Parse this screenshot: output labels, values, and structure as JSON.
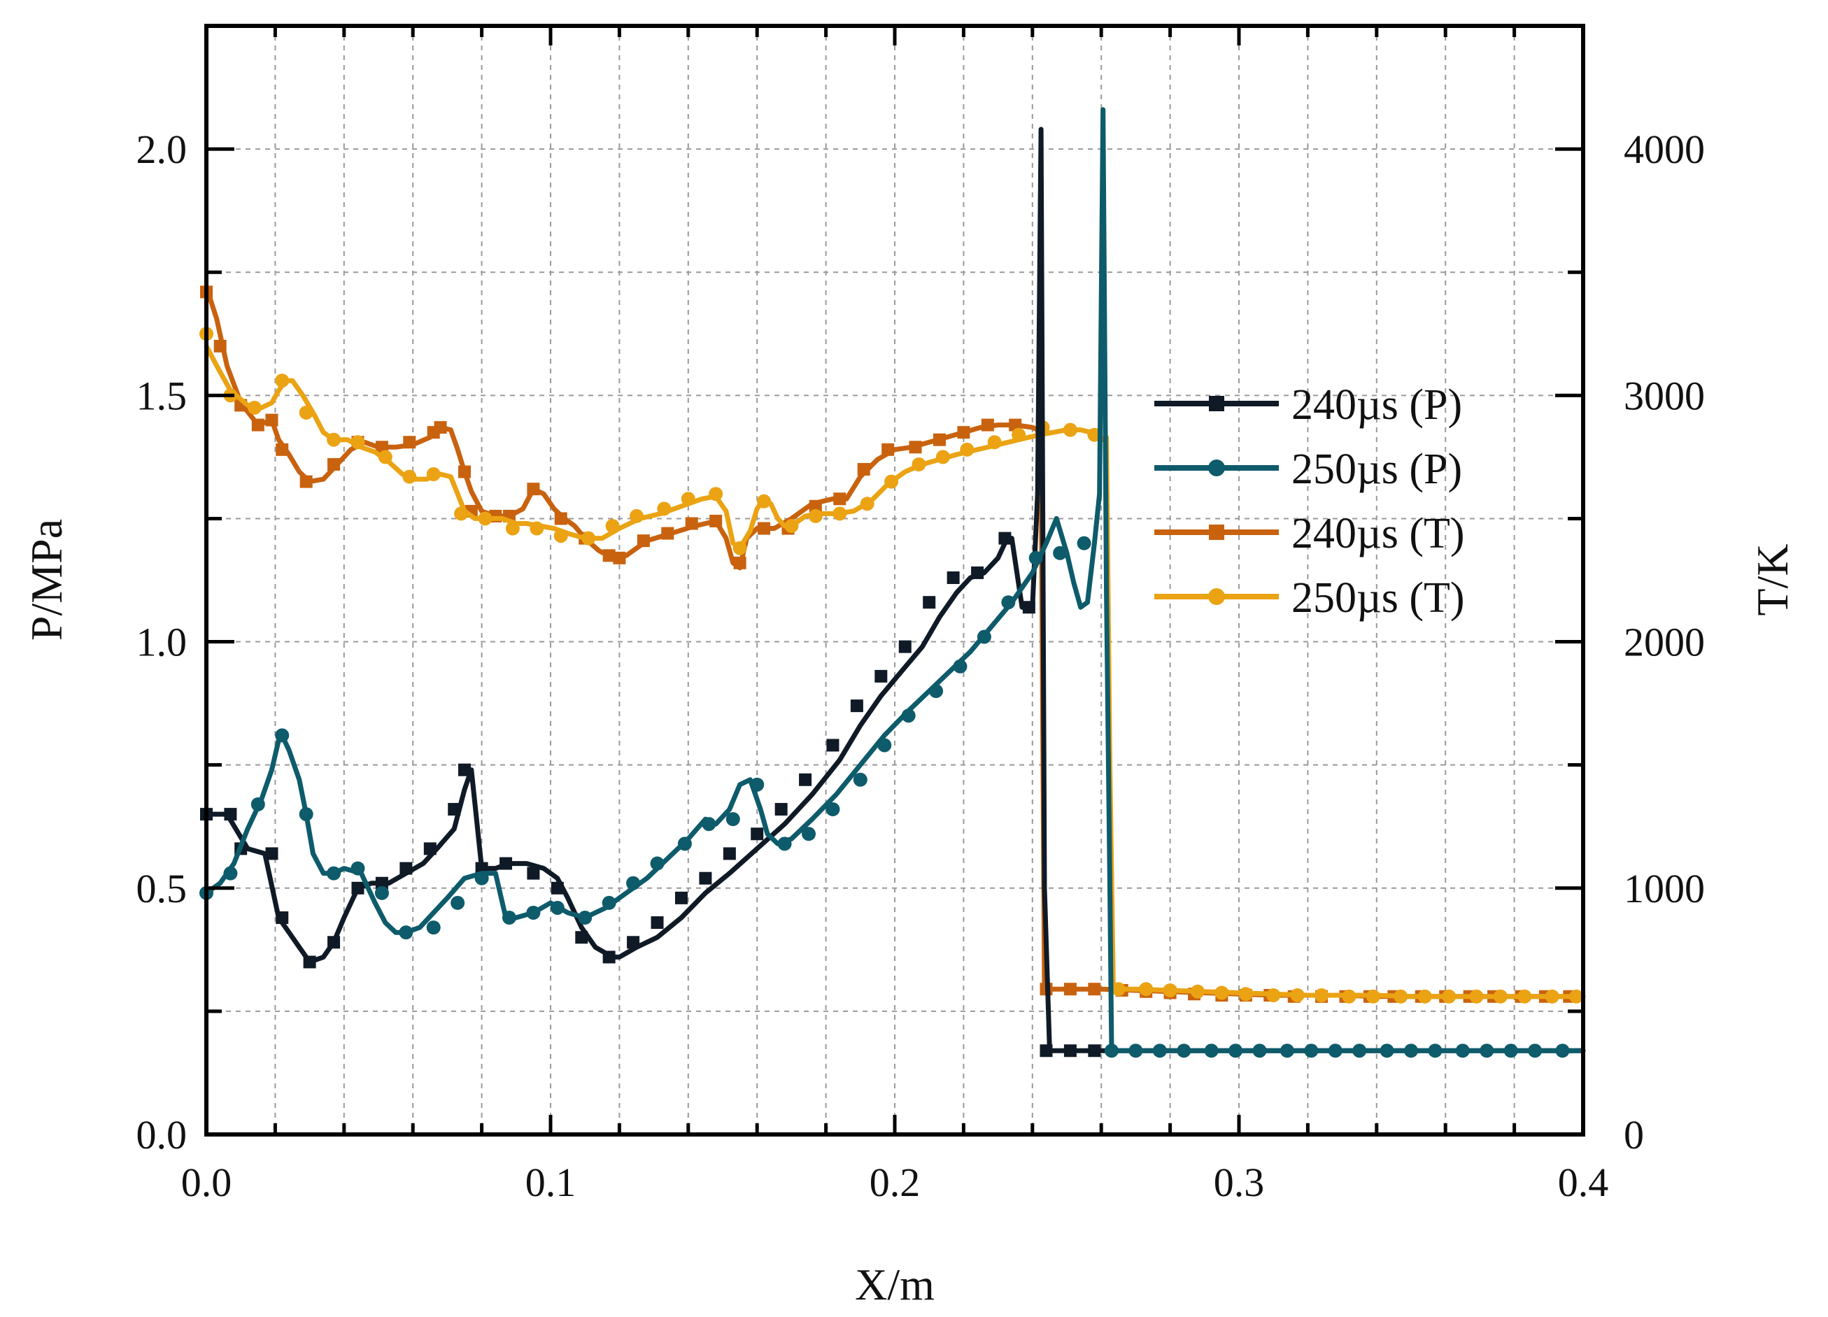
{
  "chart_data": {
    "type": "line",
    "title": "",
    "xlabel": "X/m",
    "ylabel_left": "P/MPa",
    "ylabel_right": "T/K",
    "xlim": [
      0,
      0.4
    ],
    "ylim_left": [
      0,
      2.25
    ],
    "ylim_right": [
      0,
      4500
    ],
    "grid": true,
    "legend_position": "right",
    "x_ticks": [
      0.0,
      0.1,
      0.2,
      0.3,
      0.4
    ],
    "x_tick_labels": [
      "0.0",
      "0.1",
      "0.2",
      "0.3",
      "0.4"
    ],
    "y_left_ticks": [
      0.0,
      0.5,
      1.0,
      1.5,
      2.0
    ],
    "y_left_tick_labels": [
      "0.0",
      "0.5",
      "1.0",
      "1.5",
      "2.0"
    ],
    "y_right_ticks": [
      0,
      1000,
      2000,
      3000,
      4000
    ],
    "y_right_tick_labels": [
      "0",
      "1000",
      "2000",
      "3000",
      "4000"
    ],
    "series": [
      {
        "name": "240µs (P)",
        "axis": "left",
        "color": "#0f1a26",
        "marker": "square",
        "x": [
          0.0,
          0.006,
          0.012,
          0.017,
          0.021,
          0.023,
          0.027,
          0.03,
          0.034,
          0.037,
          0.04,
          0.044,
          0.048,
          0.053,
          0.058,
          0.063,
          0.067,
          0.072,
          0.075,
          0.077,
          0.08,
          0.084,
          0.088,
          0.093,
          0.098,
          0.102,
          0.105,
          0.109,
          0.113,
          0.118,
          0.12,
          0.125,
          0.131,
          0.138,
          0.145,
          0.152,
          0.16,
          0.168,
          0.176,
          0.184,
          0.19,
          0.196,
          0.202,
          0.208,
          0.213,
          0.218,
          0.222,
          0.226,
          0.23,
          0.232,
          0.234,
          0.237,
          0.24,
          0.2415,
          0.2425,
          0.2435,
          0.245,
          0.248,
          0.255,
          0.262,
          0.27,
          0.28,
          0.29,
          0.3,
          0.31,
          0.32,
          0.33,
          0.34,
          0.35,
          0.36,
          0.37,
          0.38,
          0.39,
          0.4
        ],
        "y": [
          0.65,
          0.65,
          0.58,
          0.57,
          0.44,
          0.42,
          0.38,
          0.35,
          0.36,
          0.39,
          0.44,
          0.5,
          0.51,
          0.51,
          0.53,
          0.55,
          0.58,
          0.62,
          0.7,
          0.74,
          0.54,
          0.54,
          0.55,
          0.55,
          0.54,
          0.52,
          0.48,
          0.42,
          0.38,
          0.36,
          0.36,
          0.38,
          0.4,
          0.44,
          0.49,
          0.53,
          0.58,
          0.63,
          0.69,
          0.76,
          0.83,
          0.89,
          0.94,
          0.99,
          1.05,
          1.1,
          1.13,
          1.14,
          1.17,
          1.2,
          1.21,
          1.07,
          1.07,
          1.3,
          2.04,
          0.5,
          0.17,
          0.17,
          0.17,
          0.17,
          0.17,
          0.17,
          0.17,
          0.17,
          0.17,
          0.17,
          0.17,
          0.17,
          0.17,
          0.17,
          0.17,
          0.17,
          0.17,
          0.17
        ],
        "marker_x": [
          0.0,
          0.007,
          0.01,
          0.019,
          0.022,
          0.03,
          0.037,
          0.044,
          0.051,
          0.058,
          0.065,
          0.072,
          0.075,
          0.08,
          0.087,
          0.095,
          0.102,
          0.109,
          0.117,
          0.124,
          0.131,
          0.138,
          0.145,
          0.152,
          0.16,
          0.167,
          0.174,
          0.182,
          0.189,
          0.196,
          0.203,
          0.21,
          0.217,
          0.224,
          0.232,
          0.239,
          0.244,
          0.251,
          0.258
        ],
        "marker_y": [
          0.65,
          0.65,
          0.58,
          0.57,
          0.44,
          0.35,
          0.39,
          0.5,
          0.51,
          0.54,
          0.58,
          0.66,
          0.74,
          0.54,
          0.55,
          0.53,
          0.5,
          0.4,
          0.36,
          0.39,
          0.43,
          0.48,
          0.52,
          0.57,
          0.61,
          0.66,
          0.72,
          0.79,
          0.87,
          0.93,
          0.99,
          1.08,
          1.13,
          1.14,
          1.21,
          1.07,
          0.17,
          0.17,
          0.17
        ]
      },
      {
        "name": "250µs (P)",
        "axis": "left",
        "color": "#0d5b6b",
        "marker": "circle",
        "x": [
          0.0,
          0.004,
          0.008,
          0.012,
          0.016,
          0.019,
          0.021,
          0.022,
          0.024,
          0.027,
          0.029,
          0.031,
          0.034,
          0.037,
          0.04,
          0.045,
          0.049,
          0.052,
          0.055,
          0.058,
          0.062,
          0.066,
          0.07,
          0.075,
          0.08,
          0.084,
          0.087,
          0.09,
          0.095,
          0.1,
          0.105,
          0.11,
          0.116,
          0.122,
          0.128,
          0.134,
          0.14,
          0.145,
          0.148,
          0.152,
          0.155,
          0.158,
          0.161,
          0.163,
          0.166,
          0.17,
          0.176,
          0.183,
          0.19,
          0.197,
          0.204,
          0.21,
          0.216,
          0.222,
          0.228,
          0.234,
          0.24,
          0.244,
          0.247,
          0.25,
          0.252,
          0.254,
          0.256,
          0.258,
          0.2595,
          0.2605,
          0.2615,
          0.2625,
          0.263,
          0.265,
          0.27,
          0.28,
          0.29,
          0.3,
          0.31,
          0.32,
          0.33,
          0.34,
          0.35,
          0.36,
          0.37,
          0.38,
          0.39,
          0.4
        ],
        "y": [
          0.49,
          0.51,
          0.55,
          0.62,
          0.68,
          0.74,
          0.8,
          0.81,
          0.78,
          0.72,
          0.65,
          0.57,
          0.53,
          0.53,
          0.54,
          0.53,
          0.47,
          0.43,
          0.41,
          0.41,
          0.42,
          0.45,
          0.48,
          0.52,
          0.53,
          0.53,
          0.44,
          0.44,
          0.45,
          0.47,
          0.45,
          0.44,
          0.46,
          0.49,
          0.52,
          0.56,
          0.6,
          0.64,
          0.63,
          0.66,
          0.71,
          0.72,
          0.66,
          0.61,
          0.59,
          0.6,
          0.64,
          0.69,
          0.75,
          0.81,
          0.86,
          0.9,
          0.94,
          0.98,
          1.03,
          1.08,
          1.14,
          1.2,
          1.25,
          1.18,
          1.12,
          1.07,
          1.08,
          1.2,
          1.3,
          2.08,
          1.1,
          0.5,
          0.17,
          0.17,
          0.17,
          0.17,
          0.17,
          0.17,
          0.17,
          0.17,
          0.17,
          0.17,
          0.17,
          0.17,
          0.17,
          0.17,
          0.17,
          0.17
        ],
        "marker_x": [
          0.0,
          0.007,
          0.015,
          0.022,
          0.029,
          0.037,
          0.044,
          0.051,
          0.058,
          0.066,
          0.073,
          0.08,
          0.088,
          0.095,
          0.102,
          0.11,
          0.117,
          0.124,
          0.131,
          0.139,
          0.146,
          0.153,
          0.16,
          0.168,
          0.175,
          0.182,
          0.19,
          0.197,
          0.204,
          0.212,
          0.219,
          0.226,
          0.233,
          0.241,
          0.248,
          0.255,
          0.263,
          0.27,
          0.277,
          0.284,
          0.292,
          0.299,
          0.306,
          0.314,
          0.321,
          0.328,
          0.335,
          0.343,
          0.35,
          0.357,
          0.365,
          0.372,
          0.379,
          0.386,
          0.394
        ],
        "marker_y": [
          0.49,
          0.53,
          0.67,
          0.81,
          0.65,
          0.53,
          0.54,
          0.49,
          0.41,
          0.42,
          0.47,
          0.52,
          0.44,
          0.45,
          0.46,
          0.44,
          0.47,
          0.51,
          0.55,
          0.59,
          0.63,
          0.64,
          0.71,
          0.59,
          0.61,
          0.66,
          0.72,
          0.79,
          0.85,
          0.9,
          0.95,
          1.01,
          1.08,
          1.17,
          1.18,
          1.2,
          0.17,
          0.17,
          0.17,
          0.17,
          0.17,
          0.17,
          0.17,
          0.17,
          0.17,
          0.17,
          0.17,
          0.17,
          0.17,
          0.17,
          0.17,
          0.17,
          0.17,
          0.17,
          0.17
        ]
      },
      {
        "name": "240µs (T)",
        "axis": "right",
        "color": "#c9620e",
        "marker": "square",
        "x": [
          0.0,
          0.003,
          0.006,
          0.01,
          0.015,
          0.019,
          0.021,
          0.024,
          0.027,
          0.03,
          0.034,
          0.038,
          0.042,
          0.046,
          0.05,
          0.055,
          0.06,
          0.065,
          0.068,
          0.071,
          0.073,
          0.075,
          0.077,
          0.08,
          0.084,
          0.088,
          0.092,
          0.095,
          0.098,
          0.101,
          0.104,
          0.107,
          0.11,
          0.114,
          0.118,
          0.122,
          0.128,
          0.135,
          0.142,
          0.148,
          0.151,
          0.153,
          0.155,
          0.157,
          0.16,
          0.165,
          0.17,
          0.176,
          0.182,
          0.186,
          0.19,
          0.195,
          0.2,
          0.205,
          0.21,
          0.215,
          0.22,
          0.225,
          0.23,
          0.235,
          0.24,
          0.2415,
          0.2425,
          0.2435,
          0.25,
          0.26,
          0.27,
          0.28,
          0.29,
          0.3,
          0.31,
          0.32,
          0.33,
          0.34,
          0.35,
          0.36,
          0.37,
          0.38,
          0.39,
          0.4
        ],
        "y": [
          3440,
          3310,
          3120,
          2970,
          2880,
          2900,
          2820,
          2760,
          2690,
          2650,
          2660,
          2720,
          2780,
          2810,
          2790,
          2790,
          2800,
          2830,
          2870,
          2860,
          2780,
          2690,
          2610,
          2530,
          2510,
          2510,
          2540,
          2620,
          2600,
          2540,
          2500,
          2470,
          2420,
          2370,
          2340,
          2350,
          2410,
          2440,
          2470,
          2490,
          2420,
          2320,
          2300,
          2420,
          2460,
          2460,
          2500,
          2560,
          2580,
          2580,
          2670,
          2740,
          2780,
          2790,
          2810,
          2830,
          2850,
          2870,
          2880,
          2880,
          2870,
          2860,
          2750,
          590,
          590,
          590,
          585,
          580,
          575,
          570,
          565,
          565,
          565,
          560,
          560,
          560,
          560,
          560,
          560,
          560
        ],
        "marker_x": [
          0.0,
          0.004,
          0.01,
          0.015,
          0.019,
          0.022,
          0.029,
          0.037,
          0.044,
          0.051,
          0.059,
          0.066,
          0.068,
          0.075,
          0.077,
          0.084,
          0.088,
          0.095,
          0.103,
          0.11,
          0.117,
          0.12,
          0.127,
          0.134,
          0.141,
          0.148,
          0.155,
          0.162,
          0.169,
          0.177,
          0.184,
          0.191,
          0.198,
          0.206,
          0.213,
          0.22,
          0.227,
          0.235,
          0.244,
          0.251,
          0.258,
          0.266,
          0.273,
          0.28,
          0.287,
          0.295,
          0.302,
          0.309,
          0.316,
          0.324,
          0.331,
          0.338,
          0.345,
          0.353,
          0.36,
          0.367,
          0.374,
          0.382,
          0.389,
          0.396
        ],
        "marker_y": [
          3420,
          3200,
          2960,
          2880,
          2900,
          2780,
          2650,
          2720,
          2810,
          2790,
          2810,
          2850,
          2870,
          2690,
          2530,
          2510,
          2510,
          2620,
          2500,
          2420,
          2350,
          2340,
          2410,
          2440,
          2480,
          2490,
          2320,
          2460,
          2460,
          2550,
          2580,
          2700,
          2780,
          2790,
          2820,
          2850,
          2880,
          2880,
          590,
          590,
          590,
          585,
          580,
          575,
          570,
          565,
          565,
          565,
          560,
          560,
          560,
          560,
          560,
          560,
          560,
          560,
          560,
          560,
          560,
          560
        ]
      },
      {
        "name": "250µs (T)",
        "axis": "right",
        "color": "#eba313",
        "marker": "circle",
        "x": [
          0.0,
          0.003,
          0.007,
          0.012,
          0.016,
          0.019,
          0.021,
          0.023,
          0.025,
          0.028,
          0.031,
          0.034,
          0.037,
          0.041,
          0.045,
          0.049,
          0.053,
          0.057,
          0.06,
          0.064,
          0.068,
          0.071,
          0.073,
          0.075,
          0.078,
          0.082,
          0.086,
          0.09,
          0.093,
          0.097,
          0.101,
          0.105,
          0.11,
          0.115,
          0.12,
          0.126,
          0.132,
          0.138,
          0.144,
          0.148,
          0.151,
          0.153,
          0.155,
          0.158,
          0.16,
          0.162,
          0.164,
          0.166,
          0.168,
          0.171,
          0.174,
          0.178,
          0.183,
          0.188,
          0.193,
          0.198,
          0.203,
          0.208,
          0.213,
          0.218,
          0.224,
          0.23,
          0.236,
          0.242,
          0.246,
          0.25,
          0.254,
          0.257,
          0.259,
          0.2605,
          0.2615,
          0.2625,
          0.2635,
          0.265,
          0.27,
          0.28,
          0.29,
          0.3,
          0.31,
          0.32,
          0.33,
          0.34,
          0.35,
          0.36,
          0.37,
          0.38,
          0.39,
          0.4
        ],
        "y": [
          3200,
          3120,
          3020,
          2960,
          2950,
          2970,
          3020,
          3060,
          3060,
          3000,
          2930,
          2850,
          2820,
          2820,
          2790,
          2770,
          2730,
          2680,
          2660,
          2660,
          2680,
          2670,
          2600,
          2530,
          2500,
          2500,
          2500,
          2480,
          2480,
          2470,
          2460,
          2440,
          2420,
          2420,
          2460,
          2500,
          2520,
          2550,
          2580,
          2590,
          2530,
          2400,
          2380,
          2450,
          2540,
          2580,
          2560,
          2500,
          2470,
          2480,
          2510,
          2520,
          2520,
          2530,
          2570,
          2640,
          2690,
          2720,
          2740,
          2760,
          2780,
          2800,
          2820,
          2840,
          2850,
          2860,
          2860,
          2850,
          2840,
          2820,
          2830,
          1500,
          590,
          590,
          590,
          585,
          580,
          575,
          570,
          565,
          565,
          565,
          560,
          560,
          560,
          560,
          560,
          560
        ],
        "marker_x": [
          0.0,
          0.007,
          0.014,
          0.022,
          0.029,
          0.037,
          0.044,
          0.052,
          0.059,
          0.066,
          0.074,
          0.081,
          0.089,
          0.096,
          0.103,
          0.111,
          0.118,
          0.125,
          0.133,
          0.14,
          0.148,
          0.155,
          0.162,
          0.17,
          0.177,
          0.184,
          0.192,
          0.199,
          0.207,
          0.214,
          0.221,
          0.229,
          0.236,
          0.243,
          0.251,
          0.258,
          0.265,
          0.273,
          0.28,
          0.288,
          0.295,
          0.302,
          0.31,
          0.317,
          0.324,
          0.332,
          0.339,
          0.347,
          0.354,
          0.361,
          0.369,
          0.376,
          0.383,
          0.391,
          0.398
        ],
        "marker_y": [
          3250,
          3000,
          2950,
          3060,
          2930,
          2820,
          2810,
          2750,
          2670,
          2680,
          2520,
          2500,
          2460,
          2460,
          2430,
          2420,
          2470,
          2510,
          2540,
          2580,
          2600,
          2380,
          2570,
          2470,
          2510,
          2520,
          2560,
          2650,
          2720,
          2750,
          2780,
          2810,
          2840,
          2870,
          2860,
          2840,
          590,
          590,
          585,
          580,
          575,
          570,
          565,
          565,
          565,
          560,
          560,
          560,
          560,
          560,
          560,
          560,
          560,
          560,
          560
        ]
      }
    ]
  }
}
